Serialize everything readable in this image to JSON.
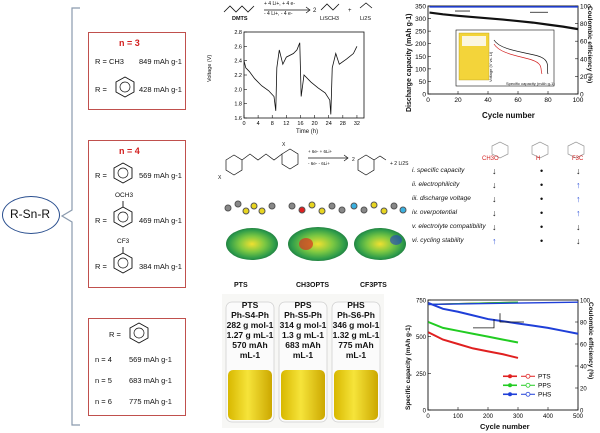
{
  "core": {
    "label": "R-Sn-R"
  },
  "panel1": {
    "n_label": "n = 3",
    "rows": [
      {
        "r": "R = CH3",
        "value": "849 mAh g-1"
      },
      {
        "r": "R =",
        "value": "428 mAh g-1"
      }
    ]
  },
  "panel2": {
    "n_label": "n = 4",
    "rows": [
      {
        "r": "R =",
        "value": "569 mAh g-1"
      },
      {
        "r": "R =",
        "sub": "OCH3",
        "value": "469 mAh g-1"
      },
      {
        "r": "R =",
        "sub": "CF3",
        "value": "384 mAh g-1"
      }
    ]
  },
  "panel3": {
    "r_label": "R =",
    "rows": [
      {
        "n": "n = 4",
        "value": "569 mAh g-1"
      },
      {
        "n": "n = 5",
        "value": "683 mAh g-1"
      },
      {
        "n": "n = 6",
        "value": "775 mAh g-1"
      }
    ]
  },
  "reaction1": {
    "labels": [
      "DMTS",
      "LiSCH3",
      "Li2S"
    ],
    "arrow_top": "+ 4 Li+, + 4 e-",
    "arrow_bottom": "- 4 Li+, - 4 e-",
    "coef": "2",
    "plus": "+"
  },
  "voltage_plot": {
    "ylabel": "Voltage (V)",
    "xlabel": "Time (h)",
    "yticks": [
      "1.6",
      "1.8",
      "2.0",
      "2.2",
      "2.4",
      "2.6",
      "2.8"
    ],
    "xticks": [
      "0",
      "4",
      "8",
      "12",
      "16",
      "20",
      "24",
      "28",
      "32"
    ]
  },
  "cycle_plot1": {
    "ylabel_left": "Discharge capacity (mAh g-1)",
    "ylabel_right": "Coulombic efficiency (%)",
    "xlabel": "Cycle number",
    "yticks_left": [
      "0",
      "50",
      "100",
      "150",
      "200",
      "250",
      "300",
      "350"
    ],
    "yticks_right": [
      "0",
      "20",
      "40",
      "60",
      "80",
      "100"
    ],
    "xticks": [
      "0",
      "20",
      "40",
      "60",
      "80",
      "100"
    ],
    "inset": {
      "ylabel": "Voltage (V vs. Li)",
      "xlabel": "Specific capacity (mAh g-1)"
    }
  },
  "reaction2": {
    "arrow_top": "+ 6e- + 6Li+",
    "arrow_bottom": "- 6e- - 6Li+",
    "coef": "2",
    "plus_li2s": "+ 2 Li2S",
    "x_label": "X"
  },
  "molecules": [
    "PTS",
    "CH3OPTS",
    "CF3PTS"
  ],
  "comparison": {
    "headers": [
      "CH3O",
      "H",
      "F3C"
    ],
    "rows": [
      {
        "label": "i.  specific capacity",
        "marks": [
          "↓",
          "•",
          "↓"
        ]
      },
      {
        "label": "ii.  electrophilicity",
        "marks": [
          "↓",
          "•",
          "↑"
        ]
      },
      {
        "label": "iii. discharge voltage",
        "marks": [
          "↓",
          "•",
          "↑"
        ]
      },
      {
        "label": "iv. overpotential",
        "marks": [
          "↓",
          "•",
          "↑"
        ]
      },
      {
        "label": "v.  electrolyte compatibility",
        "marks": [
          "↓",
          "•",
          "↓"
        ]
      },
      {
        "label": "vi. cycling stability",
        "marks": [
          "↑",
          "•",
          "↓"
        ]
      }
    ]
  },
  "vials": [
    {
      "name": "PTS",
      "formula": "Ph-S4-Ph",
      "mw": "282 g mol-1",
      "density": "1.27 g mL-1",
      "cap": "570 mAh mL-1"
    },
    {
      "name": "PPS",
      "formula": "Ph-S5-Ph",
      "mw": "314 g mol-1",
      "density": "1.3 g mL-1",
      "cap": "683 mAh mL-1"
    },
    {
      "name": "PHS",
      "formula": "Ph-S6-Ph",
      "mw": "346 g mol-1",
      "density": "1.32 g mL-1",
      "cap": "775 mAh mL-1"
    }
  ],
  "cycle_plot2": {
    "ylabel_left": "Specific capacity (mAh g-1)",
    "ylabel_right": "Coulombic efficiency (%)",
    "xlabel": "Cycle number",
    "yticks_left": [
      "0",
      "250",
      "500",
      "750"
    ],
    "yticks_right": [
      "0",
      "20",
      "40",
      "60",
      "80",
      "100"
    ],
    "xticks": [
      "0",
      "100",
      "200",
      "300",
      "400",
      "500"
    ],
    "legend": [
      "PTS",
      "PPS",
      "PHS"
    ],
    "colors": {
      "PTS": "#e02020",
      "PPS": "#22cc22",
      "PHS": "#1f3fd8"
    }
  },
  "chart_data": [
    {
      "type": "line",
      "title": "",
      "xlabel": "Time (h)",
      "ylabel": "Voltage (V)",
      "xlim": [
        0,
        34
      ],
      "ylim": [
        1.6,
        2.8
      ],
      "series": [
        {
          "values": [
            [
              0,
              2.4
            ],
            [
              0.5,
              2.3
            ],
            [
              1.5,
              2.25
            ],
            [
              3,
              2.15
            ],
            [
              5,
              2.05
            ],
            [
              7,
              1.98
            ],
            [
              8.5,
              1.9
            ],
            [
              9,
              1.7
            ],
            [
              9.3,
              2.3
            ],
            [
              10,
              2.55
            ],
            [
              11,
              2.35
            ],
            [
              12,
              2.45
            ],
            [
              14,
              2.5
            ],
            [
              15,
              2.55
            ],
            [
              15.8,
              2.65
            ],
            [
              16.2,
              1.9
            ],
            [
              17,
              2.2
            ],
            [
              19,
              2.1
            ],
            [
              21,
              2.02
            ],
            [
              23,
              1.95
            ],
            [
              24.3,
              1.85
            ],
            [
              24.6,
              1.65
            ],
            [
              25,
              2.3
            ],
            [
              26,
              2.5
            ],
            [
              27,
              2.35
            ],
            [
              29,
              2.42
            ],
            [
              31,
              2.5
            ],
            [
              32,
              2.6
            ]
          ]
        }
      ]
    },
    {
      "type": "line",
      "xlabel": "Cycle number",
      "ylabel": "Discharge capacity (mAh g-1)",
      "xlim": [
        0,
        100
      ],
      "ylim": [
        0,
        350
      ],
      "series": [
        {
          "name": "Discharge capacity",
          "values": [
            [
              1,
              324
            ],
            [
              10,
              317
            ],
            [
              20,
              311
            ],
            [
              30,
              306
            ],
            [
              40,
              301
            ],
            [
              50,
              296
            ],
            [
              60,
              290
            ],
            [
              70,
              284
            ],
            [
              80,
              276
            ],
            [
              90,
              268
            ],
            [
              100,
              258
            ]
          ]
        },
        {
          "name": "Coulombic efficiency (%)",
          "values": [
            [
              1,
              99
            ],
            [
              20,
              99
            ],
            [
              40,
              99
            ],
            [
              60,
              99
            ],
            [
              80,
              99
            ],
            [
              100,
              99
            ]
          ]
        }
      ]
    },
    {
      "type": "line",
      "xlabel": "Cycle number",
      "ylabel": "Specific capacity (mAh g-1)",
      "xlim": [
        0,
        500
      ],
      "ylim": [
        0,
        750
      ],
      "series": [
        {
          "name": "PTS",
          "values": [
            [
              1,
              530
            ],
            [
              50,
              480
            ],
            [
              100,
              450
            ],
            [
              150,
              420
            ],
            [
              200,
              400
            ],
            [
              250,
              380
            ],
            [
              300,
              355
            ]
          ]
        },
        {
          "name": "PPS",
          "values": [
            [
              1,
              600
            ],
            [
              50,
              560
            ],
            [
              100,
              540
            ],
            [
              150,
              520
            ],
            [
              200,
              500
            ],
            [
              250,
              480
            ],
            [
              300,
              460
            ]
          ]
        },
        {
          "name": "PHS",
          "values": [
            [
              1,
              730
            ],
            [
              50,
              690
            ],
            [
              100,
              670
            ],
            [
              150,
              645
            ],
            [
              200,
              620
            ],
            [
              250,
              605
            ],
            [
              300,
              590
            ],
            [
              350,
              575
            ],
            [
              400,
              560
            ],
            [
              450,
              540
            ],
            [
              500,
              520
            ]
          ]
        },
        {
          "name": "PTS CE",
          "values": [
            [
              1,
              96
            ],
            [
              300,
              98
            ]
          ]
        },
        {
          "name": "PPS CE",
          "values": [
            [
              1,
              96
            ],
            [
              300,
              98
            ]
          ]
        },
        {
          "name": "PHS CE",
          "values": [
            [
              1,
              96
            ],
            [
              500,
              98
            ]
          ]
        }
      ]
    }
  ]
}
